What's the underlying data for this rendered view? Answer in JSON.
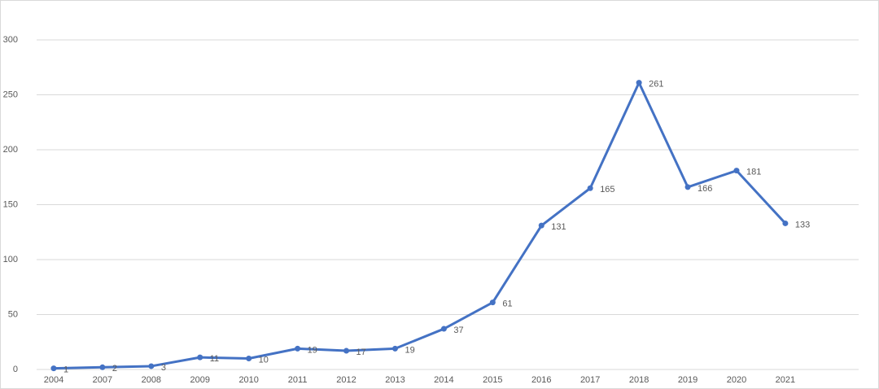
{
  "chart_data": {
    "type": "line",
    "categories": [
      "2004",
      "2007",
      "2008",
      "2009",
      "2010",
      "2011",
      "2012",
      "2013",
      "2014",
      "2015",
      "2016",
      "2017",
      "2018",
      "2019",
      "2020",
      "2021"
    ],
    "values": [
      1,
      2,
      3,
      11,
      10,
      19,
      17,
      19,
      37,
      61,
      131,
      165,
      261,
      166,
      181,
      133
    ],
    "color": "#4472c4",
    "ylim": [
      0,
      300
    ],
    "yticks": [
      0,
      50,
      100,
      150,
      200,
      250,
      300
    ],
    "grid": true
  }
}
